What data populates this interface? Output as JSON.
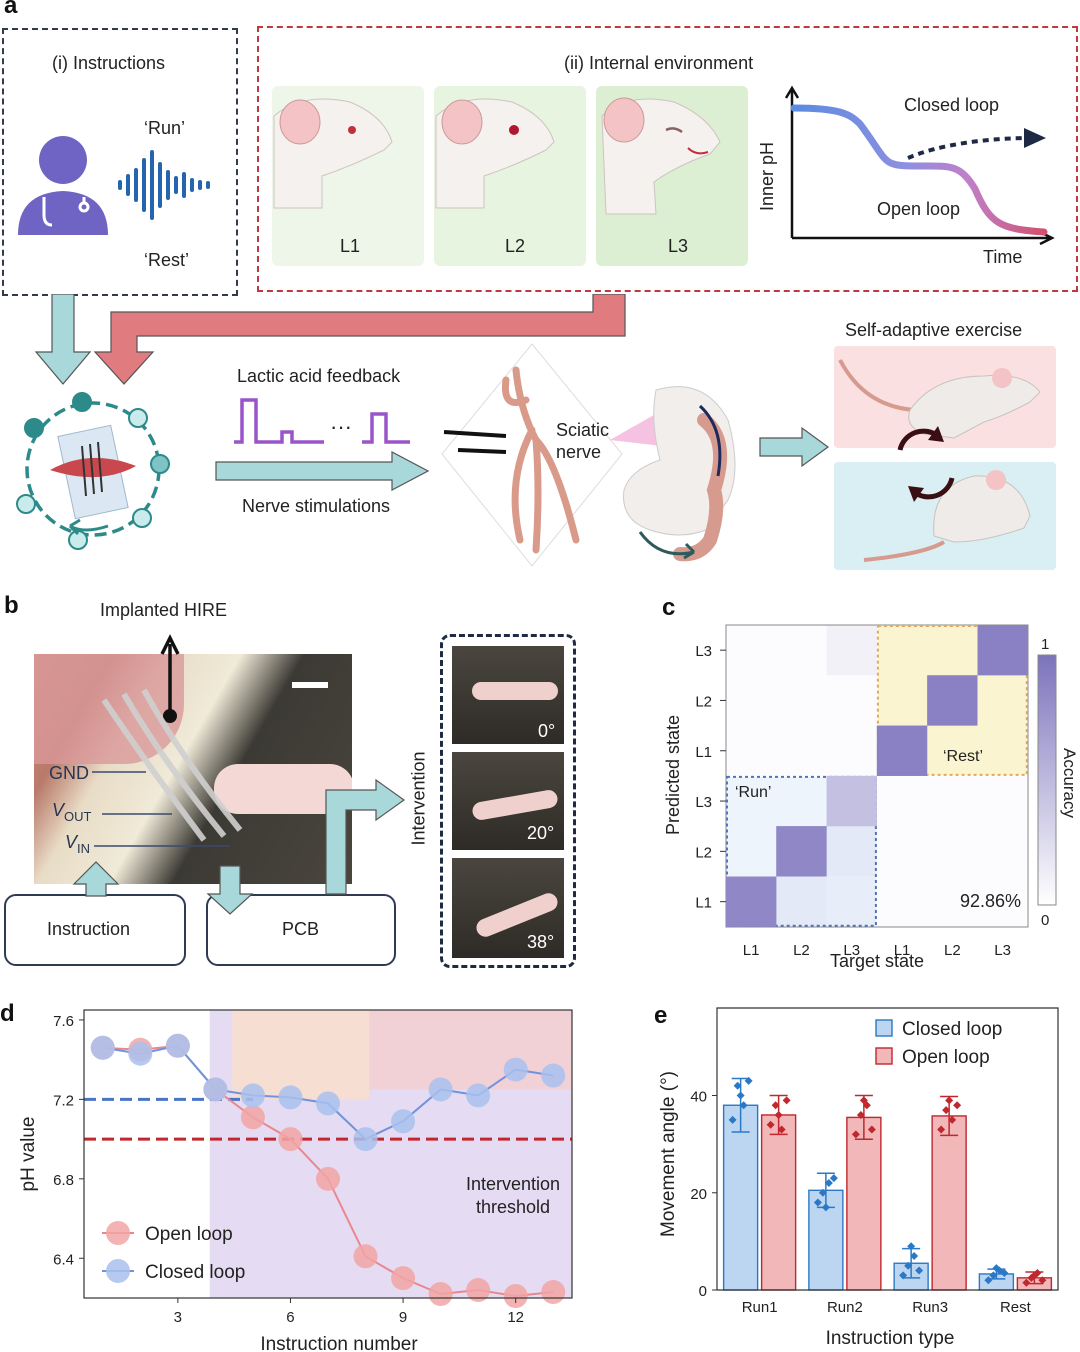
{
  "panels": {
    "a": "a",
    "b": "b",
    "c": "c",
    "d": "d",
    "e": "e"
  },
  "panel_a": {
    "instructions_title": "(i) Instructions",
    "run": "‘Run’",
    "rest": "‘Rest’",
    "internal_title": "(ii) Internal environment",
    "levels": [
      "L1",
      "L2",
      "L3"
    ],
    "closed_loop": "Closed loop",
    "open_loop": "Open loop",
    "inner_ph": "Inner pH",
    "time": "Time",
    "lactic": "Lactic acid feedback",
    "dots": "···",
    "nerve_stim": "Nerve stimulations",
    "sciatic_1": "Sciatic",
    "sciatic_2": "nerve",
    "self_adaptive": "Self-adaptive exercise"
  },
  "panel_b": {
    "implanted": "Implanted HIRE",
    "gnd": "GND",
    "vout": "V",
    "vout_sub": "OUT",
    "vin": "V",
    "vin_sub": "IN",
    "instruction": "Instruction",
    "pcb": "PCB",
    "intervention": "Intervention",
    "angles": [
      "0°",
      "20°",
      "38°"
    ]
  },
  "chart_data": [
    {
      "type": "heatmap",
      "panel": "c",
      "xlabel": "Target state",
      "ylabel": "Predicted state",
      "x_ticks": [
        "L1",
        "L2",
        "L3",
        "L1",
        "L2",
        "L3"
      ],
      "y_ticks": [
        "L3",
        "L2",
        "L1",
        "L3",
        "L2",
        "L1"
      ],
      "colorbar_label": "Accuracy",
      "colorbar_range": [
        0,
        1
      ],
      "region_labels": {
        "run": "‘Run’",
        "rest": "‘Rest’"
      },
      "overall_accuracy": "92.86%",
      "matrix": [
        [
          0.02,
          0.02,
          0.1,
          0.0,
          0.0,
          0.9
        ],
        [
          0.02,
          0.02,
          0.02,
          0.0,
          0.9,
          0.0
        ],
        [
          0.02,
          0.02,
          0.02,
          0.9,
          0.0,
          0.0
        ],
        [
          0.0,
          0.0,
          0.45,
          0.02,
          0.02,
          0.02
        ],
        [
          0.0,
          0.85,
          0.1,
          0.02,
          0.02,
          0.02
        ],
        [
          0.85,
          0.1,
          0.06,
          0.02,
          0.02,
          0.02
        ]
      ]
    },
    {
      "type": "line",
      "panel": "d",
      "xlabel": "Instruction number",
      "ylabel": "pH value",
      "x_ticks": [
        3,
        6,
        9,
        12
      ],
      "y_ticks": [
        "6.4",
        "6.8",
        "7.2",
        "7.6"
      ],
      "xlim": [
        0.5,
        13.5
      ],
      "ylim": [
        6.2,
        7.65
      ],
      "x": [
        1,
        2,
        3,
        4,
        5,
        6,
        7,
        8,
        9,
        10,
        11,
        12,
        13
      ],
      "series": [
        {
          "name": "Open loop",
          "color": "#f2a5a5",
          "line": "#e8888c",
          "values": [
            7.46,
            7.45,
            7.47,
            7.25,
            7.11,
            7.0,
            6.8,
            6.41,
            6.3,
            6.22,
            6.24,
            6.21,
            6.23
          ]
        },
        {
          "name": "Closed loop",
          "color": "#a9c1ee",
          "line": "#6f93de",
          "values": [
            7.46,
            7.43,
            7.47,
            7.25,
            7.22,
            7.21,
            7.18,
            7.0,
            7.09,
            7.25,
            7.22,
            7.35,
            7.32
          ]
        }
      ],
      "threshold_label_1": "Intervention",
      "threshold_label_2": "threshold",
      "threshold_value": 7.0,
      "blue_dash_value": 7.2
    },
    {
      "type": "bar",
      "panel": "e",
      "xlabel": "Instruction type",
      "ylabel": "Movement angle (°)",
      "categories": [
        "Run1",
        "Run2",
        "Run3",
        "Rest"
      ],
      "y_ticks": [
        0,
        20,
        40
      ],
      "ylim": [
        0,
        58
      ],
      "series": [
        {
          "name": "Closed loop",
          "fill": "#bcd6f2",
          "stroke": "#2b78c6",
          "values": [
            38,
            20.5,
            5.5,
            3.3
          ],
          "err": [
            5.5,
            3.5,
            3,
            1
          ],
          "points": [
            [
              35,
              42,
              38,
              43,
              40
            ],
            [
              18,
              20,
              22,
              23,
              17
            ],
            [
              3,
              5,
              7,
              4,
              9
            ],
            [
              2,
              3,
              4,
              3.5,
              4.5
            ]
          ]
        },
        {
          "name": "Open loop",
          "fill": "#f1b7b9",
          "stroke": "#c0282e",
          "values": [
            36,
            35.5,
            35.8,
            2.5
          ],
          "err": [
            4,
            4.5,
            4,
            1.2
          ],
          "points": [
            [
              34,
              38,
              33,
              39,
              36
            ],
            [
              32,
              36,
              38,
              33,
              39
            ],
            [
              33,
              37,
              35,
              38,
              39
            ],
            [
              1.5,
              2.5,
              3.5,
              2,
              3
            ]
          ]
        }
      ]
    }
  ]
}
